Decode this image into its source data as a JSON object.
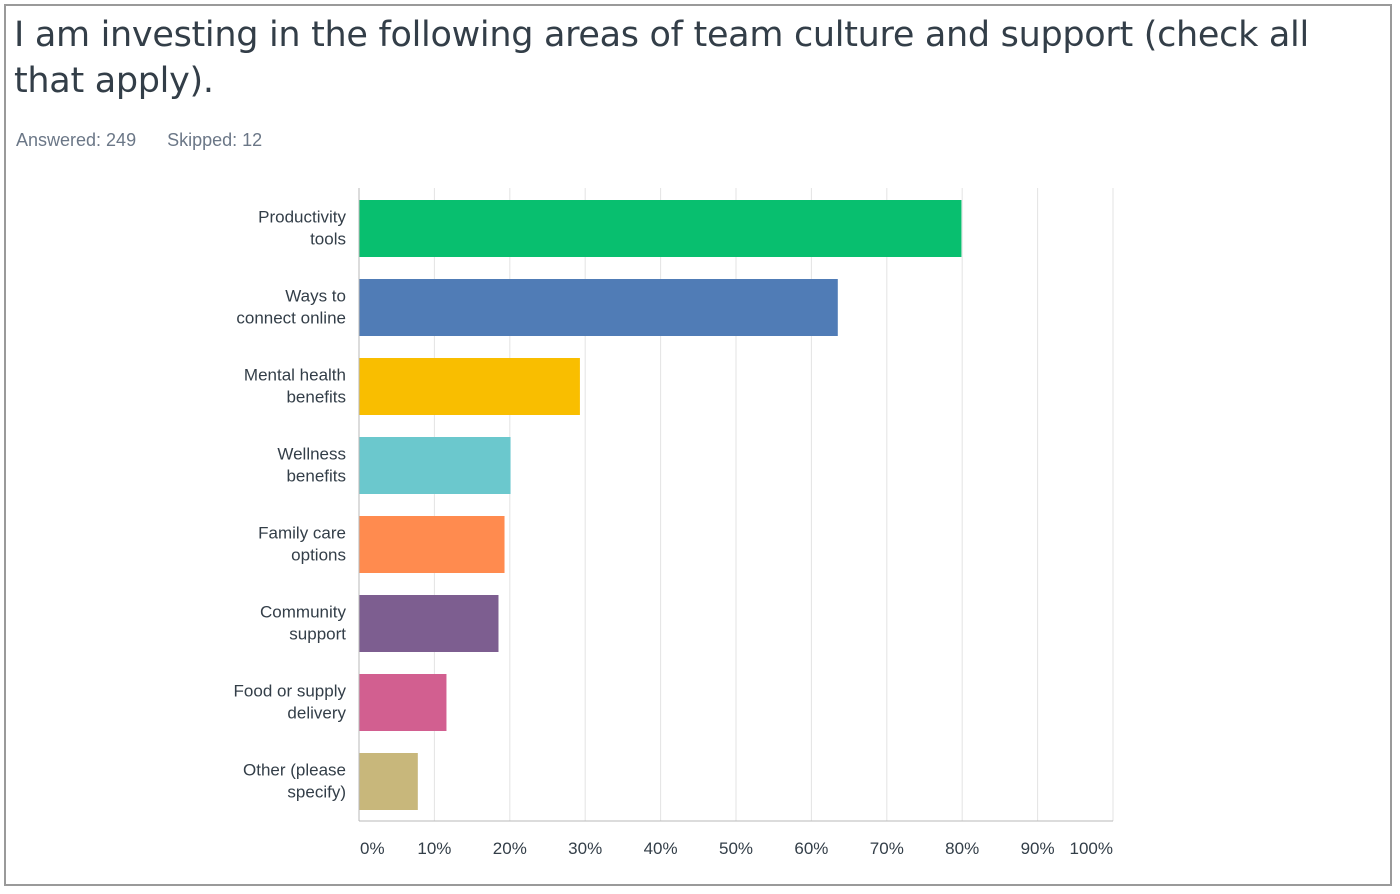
{
  "question": {
    "title": "I am investing in the following areas of team culture and support (check all that apply).",
    "answered_label": "Answered: 249",
    "skipped_label": "Skipped: 12"
  },
  "chart_data": {
    "type": "bar",
    "orientation": "horizontal",
    "title": "I am investing in the following areas of team culture and support (check all that apply).",
    "categories": [
      [
        "Productivity",
        "tools"
      ],
      [
        "Ways to",
        "connect online"
      ],
      [
        "Mental health",
        "benefits"
      ],
      [
        "Wellness",
        "benefits"
      ],
      [
        "Family care",
        "options"
      ],
      [
        "Community",
        "support"
      ],
      [
        "Food or supply",
        "delivery"
      ],
      [
        "Other (please",
        "specify)"
      ]
    ],
    "values": [
      79.9,
      63.5,
      29.3,
      20.1,
      19.3,
      18.5,
      11.6,
      7.8
    ],
    "colors": [
      "#08bf6f",
      "#507cb6",
      "#f9be00",
      "#6bc8cd",
      "#ff8b4f",
      "#7d5e90",
      "#d25f90",
      "#c8b77b"
    ],
    "xlim": [
      0,
      100
    ],
    "ticks": [
      "0%",
      "10%",
      "20%",
      "30%",
      "40%",
      "50%",
      "60%",
      "70%",
      "80%",
      "90%",
      "100%"
    ],
    "tick_values": [
      0,
      10,
      20,
      30,
      40,
      50,
      60,
      70,
      80,
      90,
      100
    ],
    "grid": true,
    "legend": "none"
  }
}
